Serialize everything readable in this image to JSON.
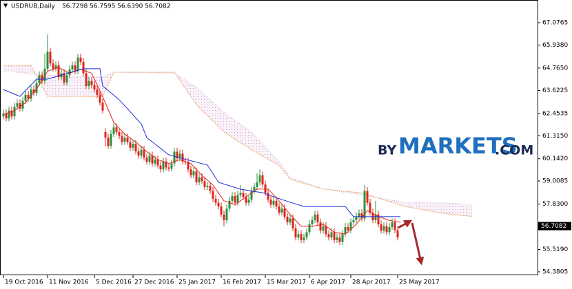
{
  "chart_data": {
    "type": "candlestick",
    "title": "USDRUB,Daily",
    "ohlc_text": "56.7298 56.7595 56.6390 56.7082",
    "watermark": {
      "prefix": "BY",
      "brand": "MARKETS",
      "suffix": ".COM"
    },
    "up_color": "#2f8f3f",
    "down_color": "#e0241b",
    "xlim": [
      -1.25,
      193.75
    ],
    "ylim": [
      54.205,
      68.234
    ],
    "yticks": [
      67.0765,
      {
        "value": 65.938,
        "label": "65.9380"
      },
      {
        "value": 64.765,
        "label": "64.7650"
      },
      63.6225,
      62.4535,
      {
        "value": 61.315,
        "label": "61.3150"
      },
      {
        "value": 60.142,
        "label": "60.1420"
      },
      59.0085,
      {
        "value": 57.83,
        "label": "57.8300"
      },
      {
        "value": 55.519,
        "label": "55.5190"
      },
      54.3805
    ],
    "xticks": [
      {
        "value": 0,
        "label": "19 Oct 2016"
      },
      {
        "value": 16,
        "label": "11 Nov 2016"
      },
      {
        "value": 33,
        "label": "5 Dec 2016"
      },
      {
        "value": 47,
        "label": "27 Dec 2016"
      },
      {
        "value": 63,
        "label": "25 Jan 2017"
      },
      {
        "value": 79,
        "label": "16 Feb 2017"
      },
      {
        "value": 95,
        "label": "15 Mar 2017"
      },
      {
        "value": 111,
        "label": "6 Apr 2017"
      },
      {
        "value": 126,
        "label": "28 Apr 2017"
      },
      {
        "value": 143,
        "label": "25 May 2017"
      }
    ],
    "last_price": 56.7082,
    "open": [
      62.3,
      62.45,
      62.2,
      62.6,
      62.3,
      62.8,
      62.97,
      62.7,
      63.1,
      63.4,
      63.2,
      63.67,
      63.5,
      64.0,
      64.4,
      64.1,
      64.73,
      65.6,
      65.0,
      64.73,
      64.9,
      64.3,
      64.5,
      64.03,
      64.4,
      64.7,
      64.9,
      64.6,
      65.3,
      65.08,
      64.5,
      63.85,
      64.1,
      63.9,
      63.67,
      63.4,
      63.0,
      61.5,
      61.22,
      60.8,
      61.4,
      61.74,
      61.5,
      61.3,
      61.0,
      61.22,
      61.0,
      60.7,
      60.9,
      60.52,
      60.3,
      60.6,
      60.2,
      59.99,
      60.3,
      59.9,
      60.1,
      59.8,
      59.6,
      60.0,
      59.7,
      59.64,
      59.9,
      60.5,
      60.16,
      60.4,
      60.0,
      59.99,
      59.6,
      59.3,
      59.5,
      58.94,
      59.2,
      59.0,
      58.7,
      58.76,
      58.5,
      58.1,
      57.9,
      57.71,
      57.3,
      57.01,
      57.6,
      58.0,
      58.24,
      57.9,
      58.3,
      58.41,
      58.2,
      57.9,
      58.06,
      58.5,
      58.7,
      58.94,
      59.3,
      58.83,
      58.4,
      58.06,
      57.8,
      58.0,
      57.71,
      57.4,
      57.6,
      57.19,
      56.9,
      57.1,
      56.6,
      56.13,
      56.3,
      56.0,
      56.13,
      56.4,
      56.8,
      57.01,
      57.3,
      56.9,
      56.48,
      56.7,
      56.3,
      56.13,
      56.4,
      56.0,
      56.13,
      55.9,
      56.3,
      56.66,
      56.5,
      56.9,
      57.01,
      57.2,
      57.36,
      57.1,
      58.5,
      57.9,
      57.4,
      57.01,
      57.3,
      56.8,
      56.48,
      56.7,
      56.4,
      56.66,
      56.9,
      56.5,
      56.73
    ],
    "high": [
      62.65,
      62.65,
      62.8,
      62.8,
      63.0,
      63.17,
      63.17,
      63.3,
      63.6,
      63.6,
      63.87,
      63.87,
      64.2,
      64.6,
      64.6,
      65.5,
      66.48,
      65.8,
      65.2,
      65.1,
      65.1,
      64.7,
      64.7,
      64.6,
      64.9,
      65.1,
      65.1,
      65.5,
      65.5,
      65.28,
      64.7,
      64.3,
      64.3,
      64.1,
      63.87,
      63.6,
      63.2,
      61.7,
      61.42,
      61.6,
      61.94,
      61.94,
      61.7,
      61.5,
      61.42,
      61.42,
      61.2,
      61.1,
      61.1,
      60.72,
      60.8,
      60.8,
      60.4,
      60.5,
      60.5,
      60.3,
      60.3,
      60.0,
      60.2,
      60.2,
      59.9,
      60.1,
      60.7,
      60.7,
      60.6,
      60.6,
      60.2,
      60.19,
      59.8,
      59.7,
      59.7,
      59.4,
      59.4,
      59.2,
      58.96,
      58.96,
      58.7,
      58.3,
      58.1,
      57.91,
      57.5,
      57.8,
      58.2,
      58.44,
      58.44,
      58.5,
      58.8,
      58.61,
      58.4,
      58.26,
      58.7,
      58.9,
      59.4,
      59.6,
      59.5,
      59.03,
      58.6,
      58.26,
      58.2,
      58.2,
      57.91,
      57.8,
      57.8,
      57.39,
      57.3,
      57.3,
      56.8,
      56.5,
      56.5,
      56.33,
      56.6,
      57.0,
      57.21,
      57.5,
      57.5,
      57.1,
      56.9,
      56.9,
      56.5,
      56.6,
      56.6,
      56.33,
      56.33,
      56.5,
      56.86,
      56.86,
      57.1,
      57.21,
      57.4,
      57.56,
      57.56,
      58.8,
      58.7,
      58.1,
      57.6,
      58.0,
      57.5,
      57.0,
      56.9,
      56.9,
      56.86,
      57.1,
      57.1,
      56.7,
      56.76
    ],
    "low": [
      62.15,
      62.05,
      62.05,
      62.15,
      62.15,
      62.65,
      62.55,
      62.55,
      62.95,
      63.05,
      63.05,
      63.35,
      63.35,
      63.85,
      63.95,
      63.95,
      64.58,
      64.85,
      64.58,
      64.58,
      64.15,
      64.15,
      63.88,
      63.88,
      64.25,
      64.55,
      64.45,
      64.45,
      64.93,
      64.35,
      63.7,
      63.7,
      63.75,
      63.52,
      63.25,
      62.85,
      62.45,
      60.8,
      60.65,
      60.65,
      61.25,
      61.35,
      61.15,
      60.85,
      60.85,
      60.85,
      60.55,
      60.55,
      60.37,
      60.15,
      60.15,
      60.05,
      59.84,
      59.84,
      59.75,
      59.75,
      59.65,
      59.45,
      59.45,
      59.55,
      59.49,
      59.49,
      59.75,
      60.01,
      60.01,
      59.85,
      59.84,
      59.45,
      59.15,
      59.15,
      58.79,
      58.79,
      58.85,
      58.55,
      58.55,
      58.35,
      57.95,
      57.75,
      57.56,
      57.15,
      56.7,
      56.86,
      57.45,
      57.85,
      57.75,
      57.75,
      58.15,
      58.05,
      57.75,
      57.75,
      57.91,
      58.35,
      58.55,
      58.79,
      58.68,
      58.25,
      57.91,
      57.65,
      57.65,
      57.56,
      57.25,
      57.25,
      57.04,
      56.75,
      56.75,
      56.45,
      55.98,
      55.98,
      55.85,
      55.85,
      55.98,
      56.25,
      56.65,
      56.86,
      56.75,
      56.33,
      56.33,
      56.15,
      55.98,
      55.98,
      55.85,
      55.85,
      55.75,
      55.75,
      56.15,
      56.35,
      56.35,
      56.75,
      56.86,
      57.05,
      56.95,
      56.95,
      57.75,
      57.25,
      56.86,
      56.86,
      56.65,
      56.33,
      56.33,
      56.25,
      56.25,
      56.51,
      56.35,
      55.98,
      56.64
    ],
    "close": [
      62.45,
      62.2,
      62.6,
      62.3,
      62.8,
      62.97,
      62.7,
      63.1,
      63.4,
      63.2,
      63.67,
      63.5,
      64.0,
      64.4,
      64.1,
      64.73,
      65.6,
      65.0,
      64.73,
      64.9,
      64.3,
      64.5,
      64.03,
      64.4,
      64.7,
      64.9,
      64.6,
      65.3,
      65.08,
      64.5,
      63.85,
      64.1,
      63.9,
      63.67,
      63.4,
      63.0,
      62.6,
      61.22,
      60.8,
      61.4,
      61.74,
      61.5,
      61.3,
      61.0,
      61.22,
      61.0,
      60.7,
      60.9,
      60.52,
      60.3,
      60.6,
      60.2,
      59.99,
      60.3,
      59.9,
      60.1,
      59.8,
      59.6,
      60.0,
      59.7,
      59.64,
      59.9,
      60.5,
      60.16,
      60.4,
      60.0,
      59.99,
      59.6,
      59.3,
      59.5,
      58.94,
      59.2,
      59.0,
      58.7,
      58.76,
      58.5,
      58.1,
      57.9,
      57.71,
      57.3,
      57.01,
      57.6,
      58.0,
      58.24,
      57.9,
      58.3,
      58.41,
      58.2,
      57.9,
      58.06,
      58.5,
      58.7,
      58.94,
      59.3,
      58.83,
      58.4,
      58.06,
      57.8,
      58.0,
      57.71,
      57.4,
      57.6,
      57.19,
      56.9,
      57.1,
      56.6,
      56.13,
      56.3,
      56.0,
      56.13,
      56.4,
      56.8,
      57.01,
      57.3,
      56.9,
      56.48,
      56.7,
      56.3,
      56.13,
      56.4,
      56.0,
      56.13,
      55.9,
      56.3,
      56.66,
      56.5,
      56.9,
      57.01,
      57.2,
      57.36,
      57.1,
      58.5,
      57.9,
      57.4,
      57.01,
      57.3,
      56.8,
      56.48,
      56.7,
      56.4,
      56.66,
      56.9,
      56.5,
      56.13,
      56.71
    ],
    "lines": [
      {
        "color": "#e0241b",
        "x": [
          0,
          4,
          8,
          12,
          16,
          20,
          24,
          28,
          32,
          36,
          40,
          44,
          48,
          52,
          56,
          60,
          64,
          68,
          72,
          76,
          80,
          84,
          88,
          92,
          96,
          100,
          104,
          108,
          112,
          116,
          120,
          124,
          128,
          132,
          136,
          140,
          144
        ],
        "values": [
          62.4,
          62.6,
          63.0,
          63.7,
          64.6,
          64.8,
          64.5,
          64.7,
          64.5,
          63.3,
          62.0,
          61.4,
          61.0,
          60.5,
          60.1,
          59.9,
          60.1,
          59.9,
          59.3,
          58.8,
          58.0,
          57.8,
          58.2,
          58.6,
          58.6,
          58.0,
          57.3,
          56.7,
          56.7,
          56.8,
          56.4,
          56.3,
          56.8,
          57.5,
          57.2,
          57.0,
          56.9
        ]
      },
      {
        "color": "#1f2fd6",
        "x": [
          0,
          6,
          12,
          16,
          29,
          35,
          36,
          42,
          50,
          52,
          60,
          74,
          78,
          86,
          94,
          101,
          109,
          124,
          127,
          144
        ],
        "values": [
          63.67,
          63.32,
          64.2,
          64.2,
          64.73,
          64.73,
          63.85,
          63.15,
          61.92,
          61.22,
          60.34,
          59.82,
          58.94,
          58.59,
          58.41,
          58.06,
          57.71,
          57.71,
          57.19,
          57.19
        ]
      }
    ],
    "cloud": {
      "color": "#f4a460",
      "fill": "#d8a8d8",
      "x": [
        0,
        10,
        16,
        36,
        40,
        62,
        70,
        80,
        90,
        100,
        104,
        116,
        130,
        146,
        160,
        170
      ],
      "span_a": [
        64.9,
        64.9,
        63.32,
        63.32,
        64.55,
        64.55,
        62.9,
        61.5,
        60.6,
        59.8,
        59.1,
        58.6,
        58.4,
        57.7,
        57.35,
        57.2
      ],
      "span_b": [
        64.6,
        64.5,
        64.4,
        64.3,
        64.55,
        64.5,
        63.8,
        62.5,
        61.5,
        60.0,
        59.2,
        58.6,
        58.3,
        57.9,
        57.9,
        57.8
      ]
    }
  }
}
